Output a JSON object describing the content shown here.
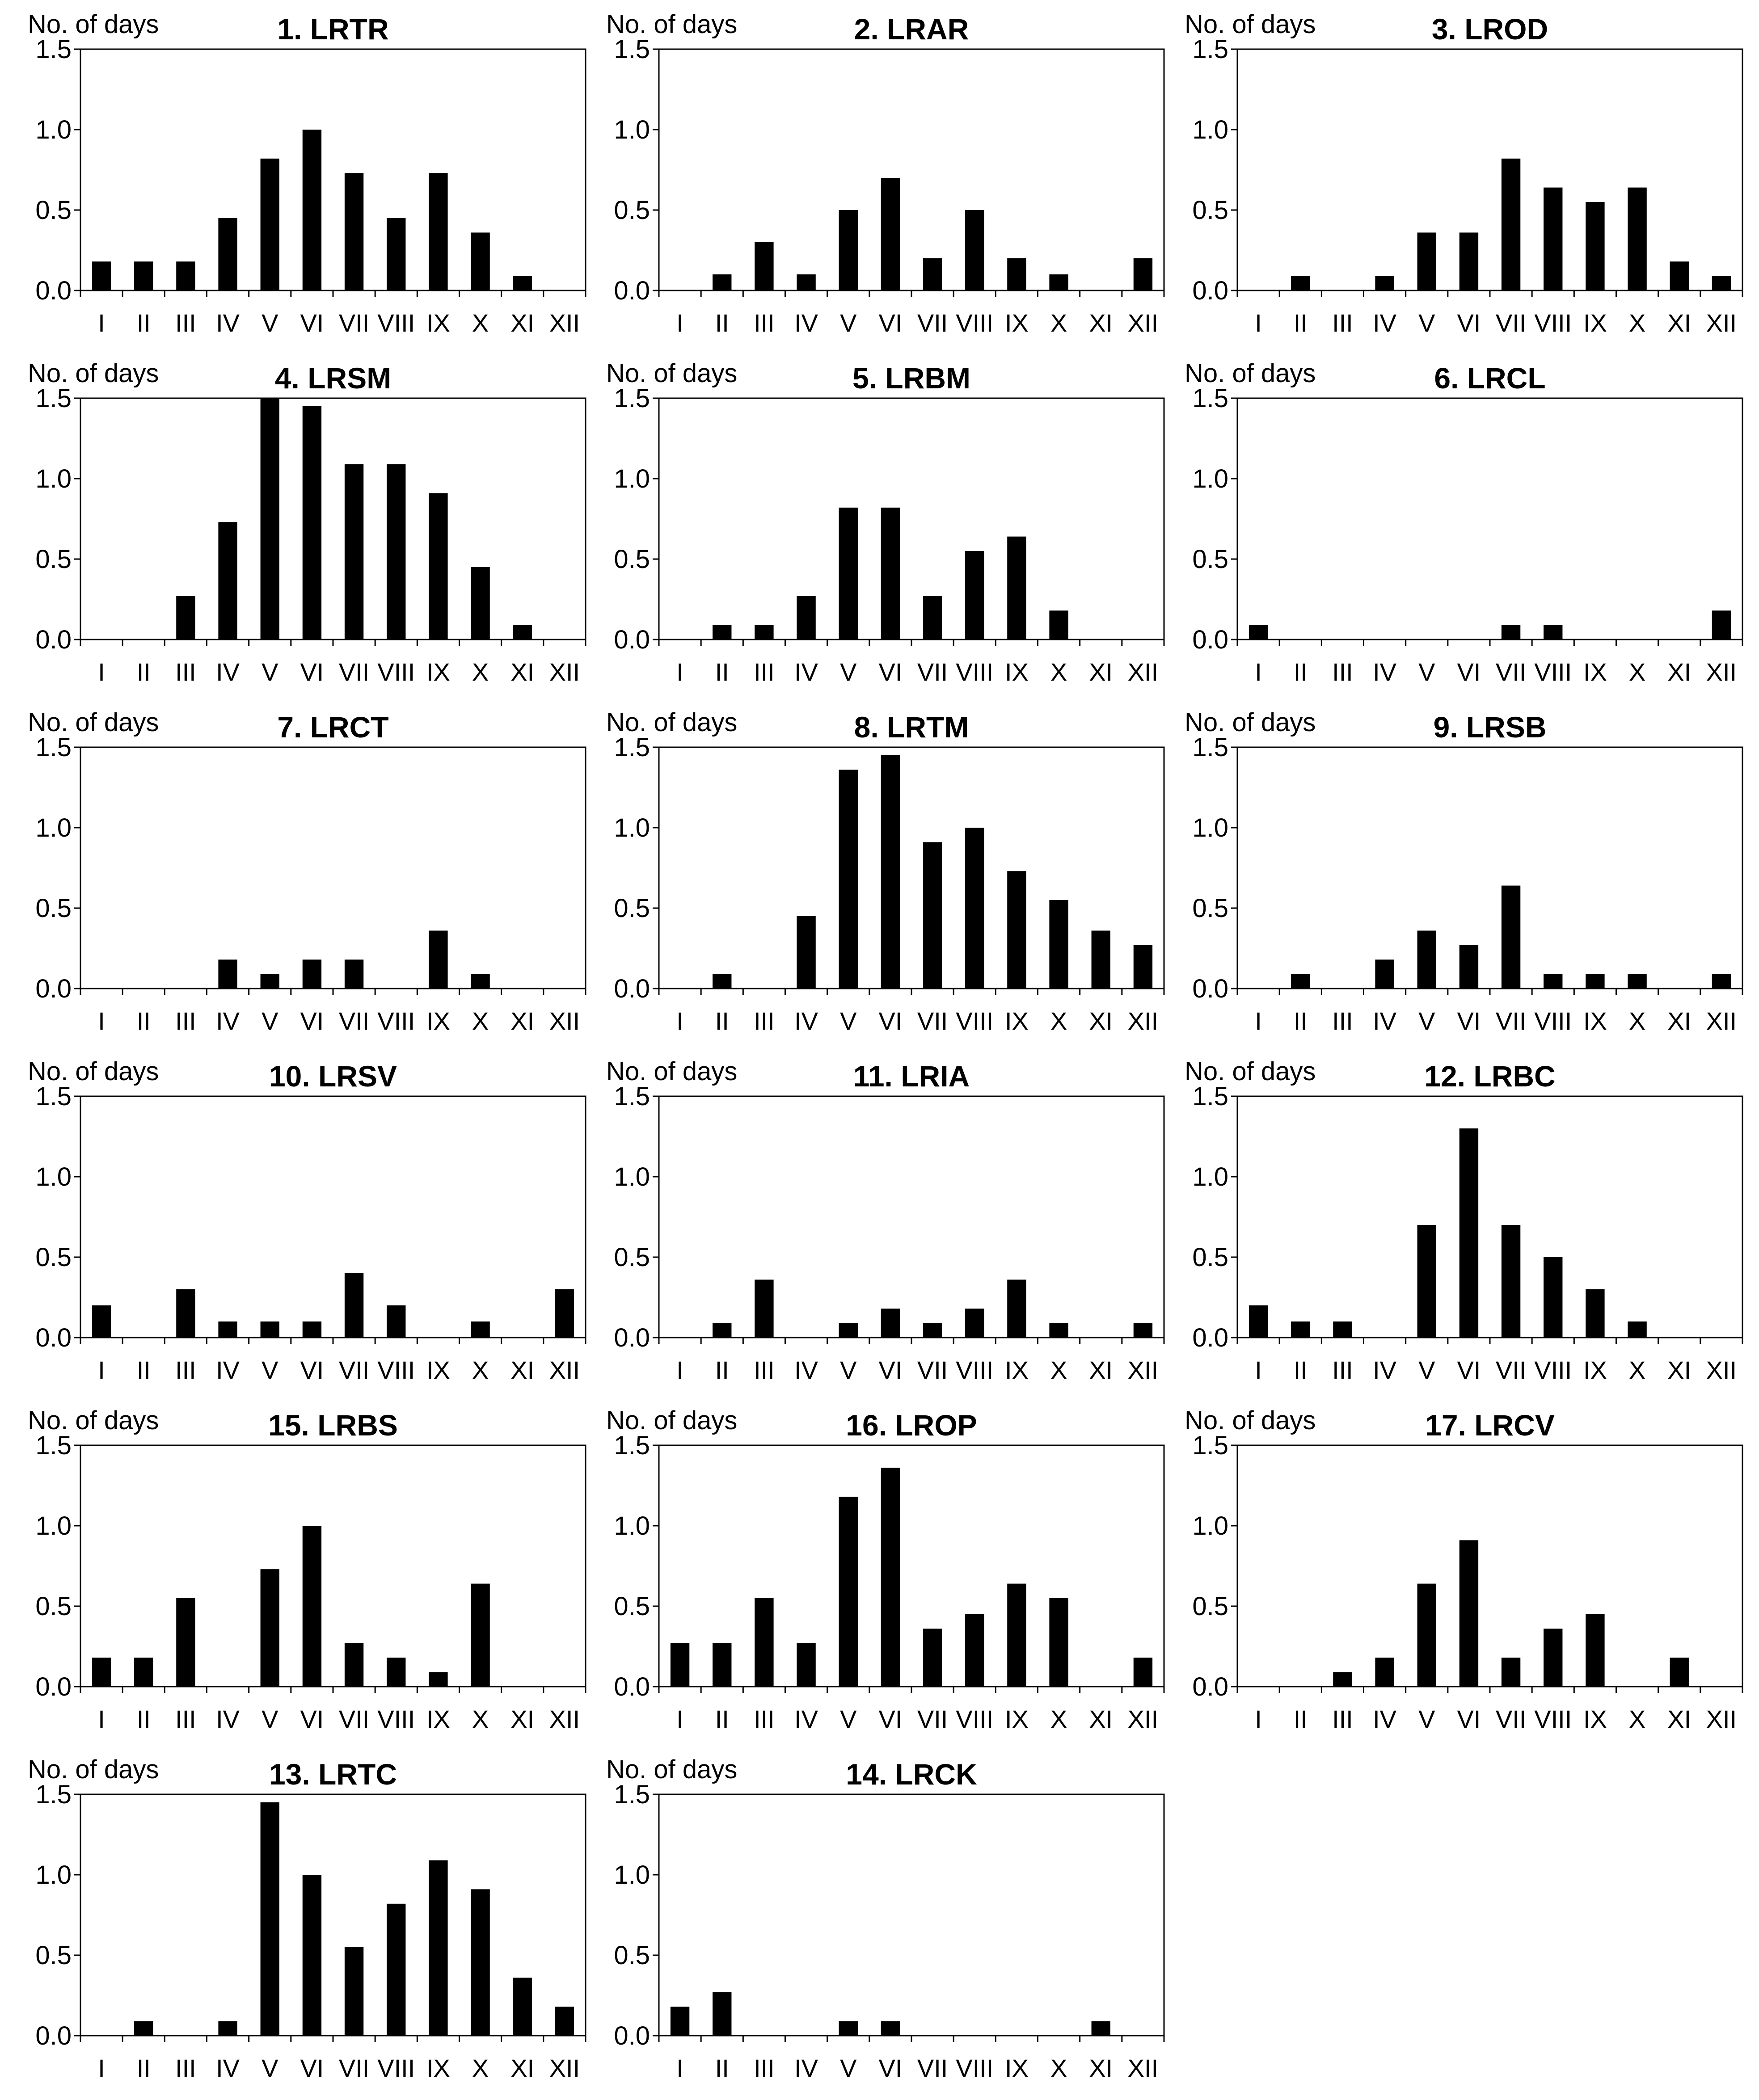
{
  "figure": {
    "y_axis_label": "No. of days",
    "categories": [
      "I",
      "II",
      "III",
      "IV",
      "V",
      "VI",
      "VII",
      "VIII",
      "IX",
      "X",
      "XI",
      "XII"
    ],
    "y_ticks": [
      "0.0",
      "0.5",
      "1.0",
      "1.5"
    ],
    "colors": {
      "bar": "#000000",
      "axis": "#000000",
      "background": "#ffffff"
    }
  },
  "chart_data": [
    {
      "type": "bar",
      "title": "1. LRTR",
      "ylabel": "No. of days",
      "ylim": [
        0,
        1.5
      ],
      "categories": [
        "I",
        "II",
        "III",
        "IV",
        "V",
        "VI",
        "VII",
        "VIII",
        "IX",
        "X",
        "XI",
        "XII"
      ],
      "values": [
        0.18,
        0.18,
        0.18,
        0.45,
        0.82,
        1.0,
        0.73,
        0.45,
        0.73,
        0.36,
        0.09,
        0
      ]
    },
    {
      "type": "bar",
      "title": "2. LRAR",
      "ylabel": "No. of days",
      "ylim": [
        0,
        1.5
      ],
      "categories": [
        "I",
        "II",
        "III",
        "IV",
        "V",
        "VI",
        "VII",
        "VIII",
        "IX",
        "X",
        "XI",
        "XII"
      ],
      "values": [
        0,
        0.1,
        0.3,
        0.1,
        0.5,
        0.7,
        0.2,
        0.5,
        0.2,
        0.1,
        0,
        0.2
      ]
    },
    {
      "type": "bar",
      "title": "3. LROD",
      "ylabel": "No. of days",
      "ylim": [
        0,
        1.5
      ],
      "categories": [
        "I",
        "II",
        "III",
        "IV",
        "V",
        "VI",
        "VII",
        "VIII",
        "IX",
        "X",
        "XI",
        "XII"
      ],
      "values": [
        0,
        0.09,
        0,
        0.09,
        0.36,
        0.36,
        0.82,
        0.64,
        0.55,
        0.64,
        0.18,
        0.09
      ]
    },
    {
      "type": "bar",
      "title": "4. LRSM",
      "ylabel": "No. of days",
      "ylim": [
        0,
        1.5
      ],
      "categories": [
        "I",
        "II",
        "III",
        "IV",
        "V",
        "VI",
        "VII",
        "VIII",
        "IX",
        "X",
        "XI",
        "XII"
      ],
      "values": [
        0,
        0,
        0.27,
        0.73,
        1.5,
        1.45,
        1.09,
        1.09,
        0.91,
        0.45,
        0.09,
        0
      ]
    },
    {
      "type": "bar",
      "title": "5. LRBM",
      "ylabel": "No. of days",
      "ylim": [
        0,
        1.5
      ],
      "categories": [
        "I",
        "II",
        "III",
        "IV",
        "V",
        "VI",
        "VII",
        "VIII",
        "IX",
        "X",
        "XI",
        "XII"
      ],
      "values": [
        0,
        0.09,
        0.09,
        0.27,
        0.82,
        0.82,
        0.27,
        0.55,
        0.64,
        0.18,
        0,
        0
      ]
    },
    {
      "type": "bar",
      "title": "6. LRCL",
      "ylabel": "No. of days",
      "ylim": [
        0,
        1.5
      ],
      "categories": [
        "I",
        "II",
        "III",
        "IV",
        "V",
        "VI",
        "VII",
        "VIII",
        "IX",
        "X",
        "XI",
        "XII"
      ],
      "values": [
        0.09,
        0,
        0,
        0,
        0,
        0,
        0.09,
        0.09,
        0,
        0,
        0,
        0.18
      ]
    },
    {
      "type": "bar",
      "title": "7. LRCT",
      "ylabel": "No. of days",
      "ylim": [
        0,
        1.5
      ],
      "categories": [
        "I",
        "II",
        "III",
        "IV",
        "V",
        "VI",
        "VII",
        "VIII",
        "IX",
        "X",
        "XI",
        "XII"
      ],
      "values": [
        0,
        0,
        0,
        0.18,
        0.09,
        0.18,
        0.18,
        0,
        0.36,
        0.09,
        0,
        0
      ]
    },
    {
      "type": "bar",
      "title": "8. LRTM",
      "ylabel": "No. of days",
      "ylim": [
        0,
        1.5
      ],
      "categories": [
        "I",
        "II",
        "III",
        "IV",
        "V",
        "VI",
        "VII",
        "VIII",
        "IX",
        "X",
        "XI",
        "XII"
      ],
      "values": [
        0,
        0.09,
        0,
        0.45,
        1.36,
        1.45,
        0.91,
        1.0,
        0.73,
        0.55,
        0.36,
        0.27
      ]
    },
    {
      "type": "bar",
      "title": "9. LRSB",
      "ylabel": "No. of days",
      "ylim": [
        0,
        1.5
      ],
      "categories": [
        "I",
        "II",
        "III",
        "IV",
        "V",
        "VI",
        "VII",
        "VIII",
        "IX",
        "X",
        "XI",
        "XII"
      ],
      "values": [
        0,
        0.09,
        0,
        0.18,
        0.36,
        0.27,
        0.64,
        0.09,
        0.09,
        0.09,
        0,
        0.09
      ]
    },
    {
      "type": "bar",
      "title": "10. LRSV",
      "ylabel": "No. of days",
      "ylim": [
        0,
        1.5
      ],
      "categories": [
        "I",
        "II",
        "III",
        "IV",
        "V",
        "VI",
        "VII",
        "VIII",
        "IX",
        "X",
        "XI",
        "XII"
      ],
      "values": [
        0.2,
        0,
        0.3,
        0.1,
        0.1,
        0.1,
        0.4,
        0.2,
        0,
        0.1,
        0,
        0.3
      ]
    },
    {
      "type": "bar",
      "title": "11. LRIA",
      "ylabel": "No. of days",
      "ylim": [
        0,
        1.5
      ],
      "categories": [
        "I",
        "II",
        "III",
        "IV",
        "V",
        "VI",
        "VII",
        "VIII",
        "IX",
        "X",
        "XI",
        "XII"
      ],
      "values": [
        0,
        0.09,
        0.36,
        0,
        0.09,
        0.18,
        0.09,
        0.18,
        0.36,
        0.09,
        0,
        0.09
      ]
    },
    {
      "type": "bar",
      "title": "12. LRBC",
      "ylabel": "No. of days",
      "ylim": [
        0,
        1.5
      ],
      "categories": [
        "I",
        "II",
        "III",
        "IV",
        "V",
        "VI",
        "VII",
        "VIII",
        "IX",
        "X",
        "XI",
        "XII"
      ],
      "values": [
        0.2,
        0.1,
        0.1,
        0,
        0.7,
        1.3,
        0.7,
        0.5,
        0.3,
        0.1,
        0,
        0
      ]
    },
    {
      "type": "bar",
      "title": "15. LRBS",
      "ylabel": "No. of days",
      "ylim": [
        0,
        1.5
      ],
      "categories": [
        "I",
        "II",
        "III",
        "IV",
        "V",
        "VI",
        "VII",
        "VIII",
        "IX",
        "X",
        "XI",
        "XII"
      ],
      "values": [
        0.18,
        0.18,
        0.55,
        0,
        0.73,
        1.0,
        0.27,
        0.18,
        0.09,
        0.64,
        0,
        0
      ]
    },
    {
      "type": "bar",
      "title": "16. LROP",
      "ylabel": "No. of days",
      "ylim": [
        0,
        1.5
      ],
      "categories": [
        "I",
        "II",
        "III",
        "IV",
        "V",
        "VI",
        "VII",
        "VIII",
        "IX",
        "X",
        "XI",
        "XII"
      ],
      "values": [
        0.27,
        0.27,
        0.55,
        0.27,
        1.18,
        1.36,
        0.36,
        0.45,
        0.64,
        0.55,
        0,
        0.18
      ]
    },
    {
      "type": "bar",
      "title": "17. LRCV",
      "ylabel": "No. of days",
      "ylim": [
        0,
        1.5
      ],
      "categories": [
        "I",
        "II",
        "III",
        "IV",
        "V",
        "VI",
        "VII",
        "VIII",
        "IX",
        "X",
        "XI",
        "XII"
      ],
      "values": [
        0,
        0,
        0.09,
        0.18,
        0.64,
        0.91,
        0.18,
        0.36,
        0.45,
        0,
        0.18,
        0
      ]
    },
    {
      "type": "bar",
      "title": "13. LRTC",
      "ylabel": "No. of days",
      "ylim": [
        0,
        1.5
      ],
      "categories": [
        "I",
        "II",
        "III",
        "IV",
        "V",
        "VI",
        "VII",
        "VIII",
        "IX",
        "X",
        "XI",
        "XII"
      ],
      "values": [
        0,
        0.09,
        0,
        0.09,
        1.45,
        1.0,
        0.55,
        0.82,
        1.09,
        0.91,
        0.36,
        0.18
      ]
    },
    {
      "type": "bar",
      "title": "14. LRCK",
      "ylabel": "No. of days",
      "ylim": [
        0,
        1.5
      ],
      "categories": [
        "I",
        "II",
        "III",
        "IV",
        "V",
        "VI",
        "VII",
        "VIII",
        "IX",
        "X",
        "XI",
        "XII"
      ],
      "values": [
        0.18,
        0.27,
        0,
        0,
        0.09,
        0.09,
        0,
        0,
        0,
        0,
        0.09,
        0
      ]
    }
  ]
}
